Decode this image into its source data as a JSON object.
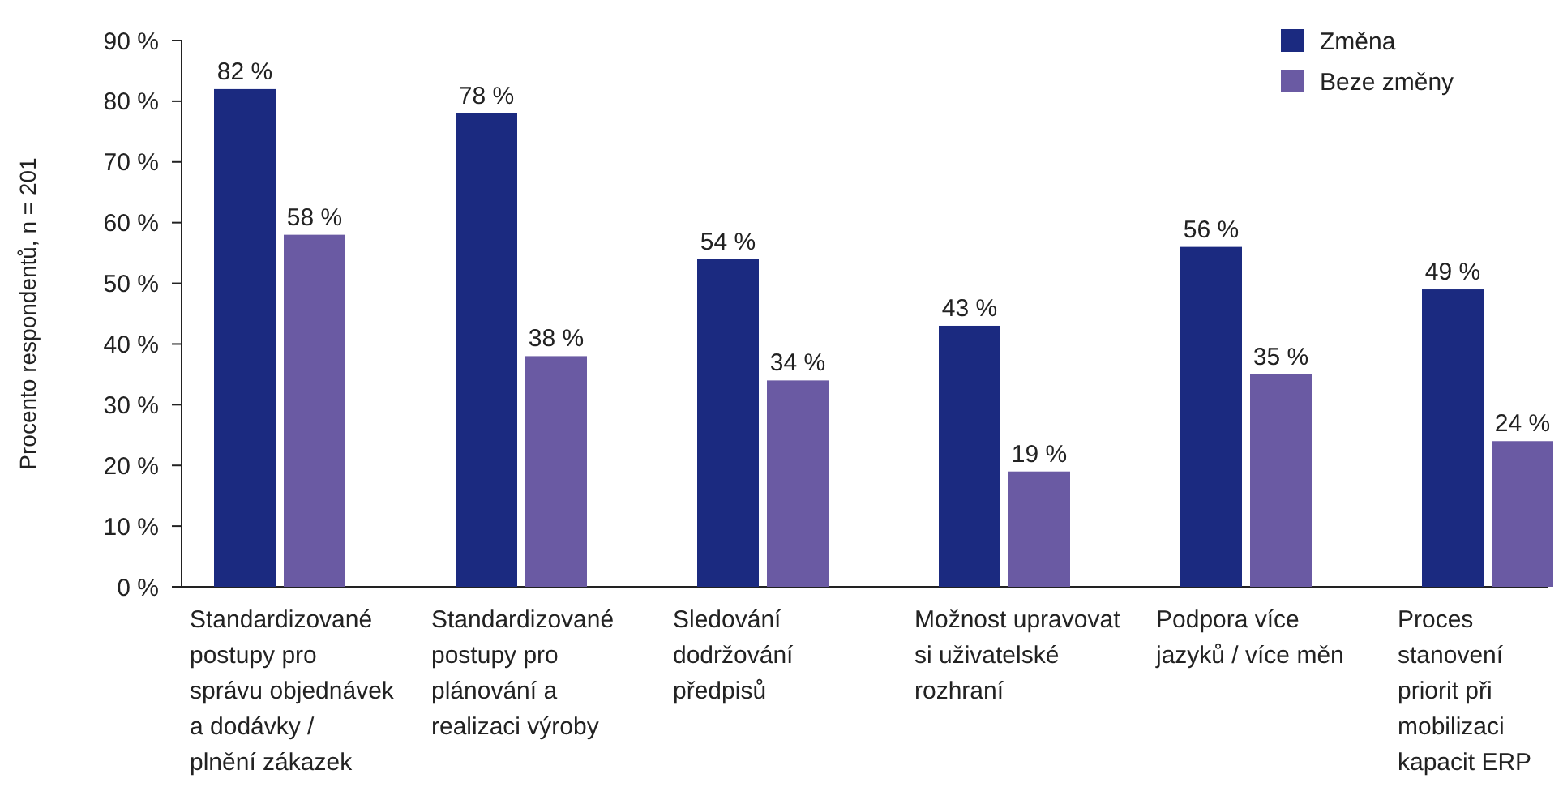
{
  "chart_data": {
    "type": "bar",
    "ylabel": "Procento respondentů, n = 201",
    "categories": [
      "Standardizované postupy pro správu objednávek a dodávky / plnění zákazek",
      "Standardizované postupy pro plánování a realizaci výroby",
      "Sledování dodržování předpisů",
      "Možnost upravovat si uživatelské rozhraní",
      "Podpora více jazyků / více měn",
      "Proces stanovení priorit při mobilizaci kapacit ERP"
    ],
    "series": [
      {
        "name": "Změna",
        "color": "#1b2a80",
        "values": [
          82,
          78,
          54,
          43,
          56,
          49
        ],
        "value_labels": [
          "82 %",
          "78 %",
          "54 %",
          "43 %",
          "56 %",
          "49 %"
        ]
      },
      {
        "name": "Beze změny",
        "color": "#6a5aa3",
        "values": [
          58,
          38,
          34,
          19,
          35,
          24
        ],
        "value_labels": [
          "58 %",
          "38 %",
          "34 %",
          "19 %",
          "35 %",
          "24 %"
        ]
      }
    ],
    "ylim": [
      0,
      90
    ],
    "yticks": [
      {
        "value": 0,
        "label": "0 %"
      },
      {
        "value": 10,
        "label": "10 %"
      },
      {
        "value": 20,
        "label": "20 %"
      },
      {
        "value": 30,
        "label": "30 %"
      },
      {
        "value": 40,
        "label": "40 %"
      },
      {
        "value": 50,
        "label": "50 %"
      },
      {
        "value": 60,
        "label": "60 %"
      },
      {
        "value": 70,
        "label": "70 %"
      },
      {
        "value": 80,
        "label": "80 %"
      },
      {
        "value": 90,
        "label": "90 %"
      }
    ],
    "grid": false,
    "legend": "top right"
  }
}
